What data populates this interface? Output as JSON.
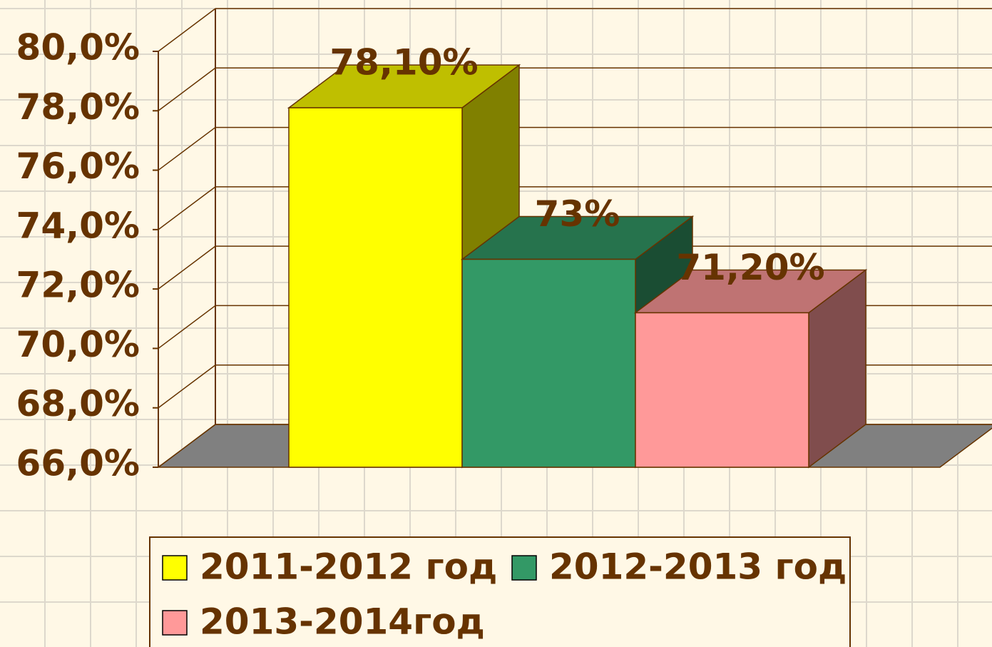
{
  "chart_data": {
    "type": "bar3d",
    "categories": [
      null
    ],
    "series": [
      {
        "name": "2011-2012 год",
        "color": "#ffff00",
        "values": [
          78.1
        ],
        "value_labels": [
          "78,10%"
        ]
      },
      {
        "name": "2012-2013 год",
        "color": "#339966",
        "values": [
          73
        ],
        "value_labels": [
          "73%"
        ]
      },
      {
        "name": "2013-2014год",
        "color": "#ff9999",
        "values": [
          71.2
        ],
        "value_labels": [
          "71,20%"
        ]
      }
    ],
    "ylim": [
      66,
      80
    ],
    "yticks": [
      {
        "value": 66,
        "label": "66,0%"
      },
      {
        "value": 68,
        "label": "68,0%"
      },
      {
        "value": 70,
        "label": "70,0%"
      },
      {
        "value": 72,
        "label": "72,0%"
      },
      {
        "value": 74,
        "label": "74,0%"
      },
      {
        "value": 76,
        "label": "76,0%"
      },
      {
        "value": 78,
        "label": "78,0%"
      },
      {
        "value": 80,
        "label": "80,0%"
      }
    ],
    "grid": true
  }
}
